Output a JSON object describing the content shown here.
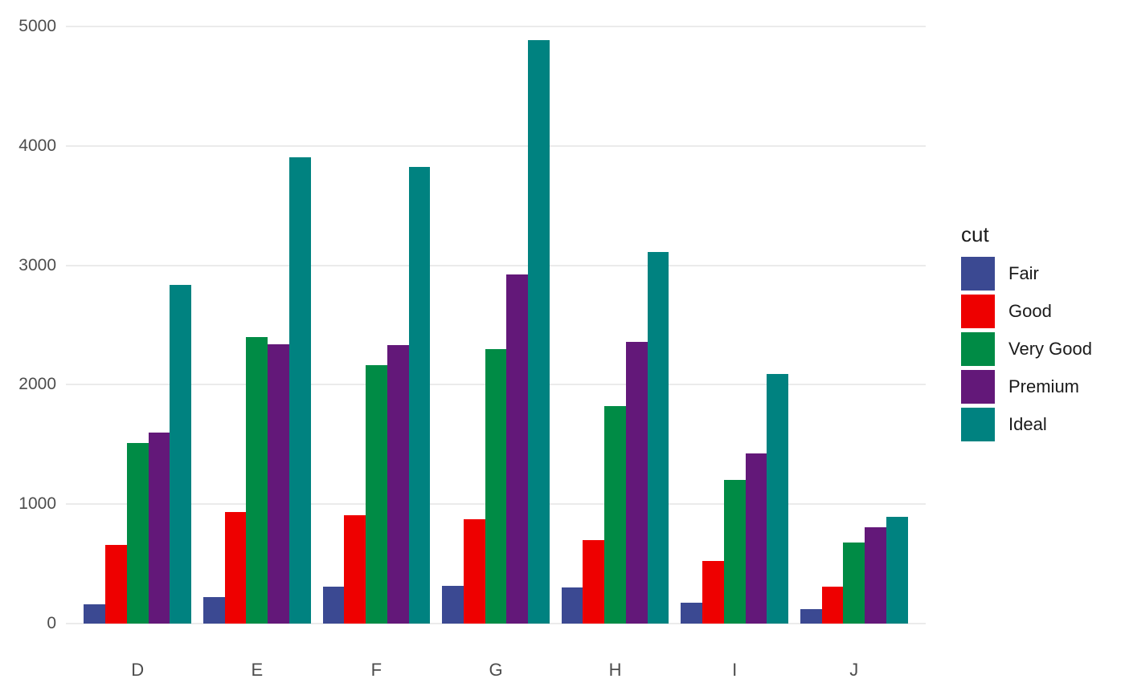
{
  "chart_data": {
    "type": "bar",
    "mode": "grouped",
    "title": "",
    "xlabel": "",
    "ylabel": "",
    "categories": [
      "D",
      "E",
      "F",
      "G",
      "H",
      "I",
      "J"
    ],
    "series": [
      {
        "name": "Fair",
        "color": "#3B4992",
        "values": [
          163,
          224,
          312,
          314,
          303,
          175,
          119
        ]
      },
      {
        "name": "Good",
        "color": "#EE0000",
        "values": [
          662,
          933,
          909,
          871,
          702,
          522,
          307
        ]
      },
      {
        "name": "Very Good",
        "color": "#008B45",
        "values": [
          1513,
          2400,
          2164,
          2299,
          1824,
          1204,
          678
        ]
      },
      {
        "name": "Premium",
        "color": "#631879",
        "values": [
          1603,
          2337,
          2331,
          2924,
          2360,
          1428,
          808
        ]
      },
      {
        "name": "Ideal",
        "color": "#008280",
        "values": [
          2834,
          3903,
          3826,
          4884,
          3115,
          2093,
          896
        ]
      }
    ],
    "y_ticks": [
      0,
      1000,
      2000,
      3000,
      4000,
      5000
    ],
    "ylim": [
      0,
      5000
    ],
    "grid": "horizontal-major-only",
    "legend": {
      "title": "cut",
      "position": "right",
      "entries": [
        "Fair",
        "Good",
        "Very Good",
        "Premium",
        "Ideal"
      ]
    }
  },
  "style": {
    "gridline_color": "#EBEBEB",
    "axis_text_color": "#4D4D4D",
    "legend_text_color": "#1A1A1A",
    "panel_background": "#FFFFFF"
  }
}
